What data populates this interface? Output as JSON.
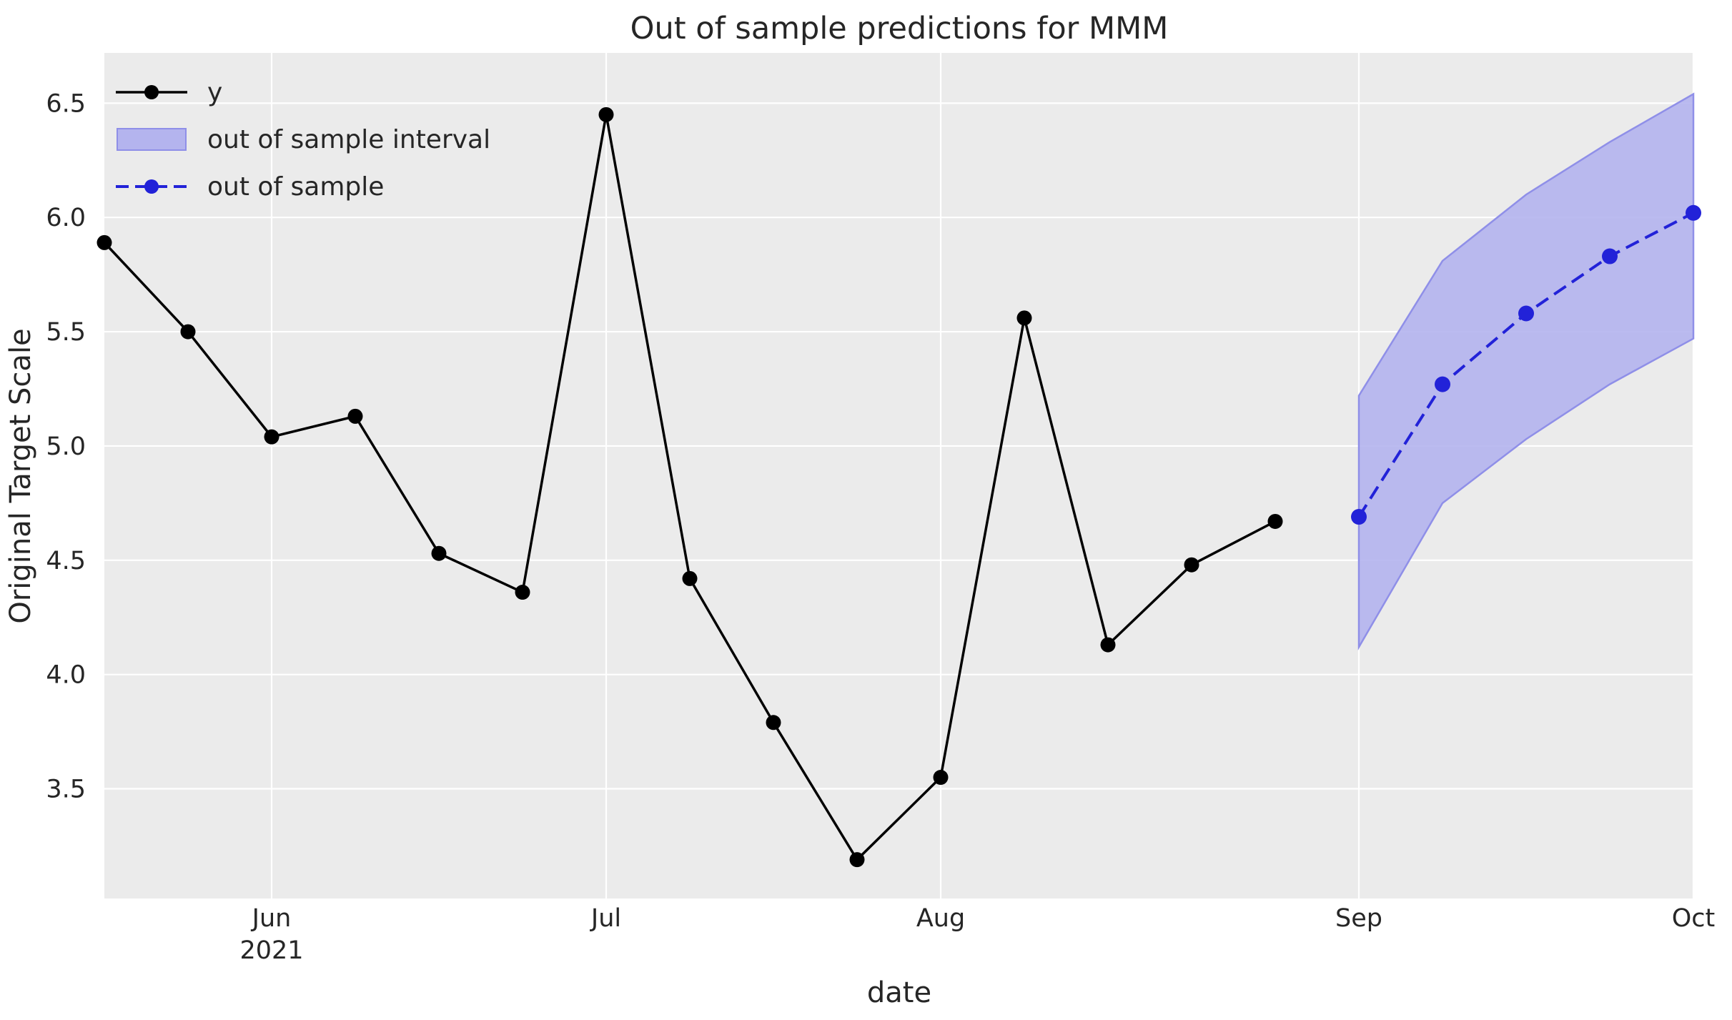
{
  "figure": {
    "title": "Out of sample predictions for MMM",
    "xlabel": "date",
    "ylabel": "Original Target Scale"
  },
  "legend": {
    "position": "upper left",
    "entries": [
      {
        "label": "y",
        "kind": "solid-line-with-marker"
      },
      {
        "label": "out of sample interval",
        "kind": "filled-patch"
      },
      {
        "label": "out of sample",
        "kind": "dashed-line-with-marker"
      }
    ]
  },
  "colors": {
    "figure_background": "#ffffff",
    "plot_background": "#ebebeb",
    "gridline": "#ffffff",
    "observed_series": "#000000",
    "forecast_series": "#2222d8",
    "interval_fill": "#b4b4ee",
    "interval_edge": "#8f8fe8",
    "text": "#262626"
  },
  "chart_data": {
    "type": "line",
    "title": "Out of sample predictions for MMM",
    "xlabel": "date",
    "ylabel": "Original Target Scale",
    "grid": true,
    "legend_position": "upper left",
    "xlim": [
      0,
      19
    ],
    "ylim": [
      3.02,
      6.72
    ],
    "x_ticks": [
      {
        "pos": 2,
        "label": "Jun",
        "sublabel": "2021"
      },
      {
        "pos": 6,
        "label": "Jul",
        "sublabel": ""
      },
      {
        "pos": 10,
        "label": "Aug",
        "sublabel": ""
      },
      {
        "pos": 15,
        "label": "Sep",
        "sublabel": ""
      },
      {
        "pos": 19,
        "label": "Oct",
        "sublabel": ""
      }
    ],
    "y_ticks": [
      {
        "v": 3.5,
        "label": "3.5"
      },
      {
        "v": 4.0,
        "label": "4.0"
      },
      {
        "v": 4.5,
        "label": "4.5"
      },
      {
        "v": 5.0,
        "label": "5.0"
      },
      {
        "v": 5.5,
        "label": "5.5"
      },
      {
        "v": 6.0,
        "label": "6.0"
      },
      {
        "v": 6.5,
        "label": "6.5"
      }
    ],
    "series": [
      {
        "name": "y",
        "style": "solid",
        "marker": "circle",
        "x": [
          0,
          1,
          2,
          3,
          4,
          5,
          6,
          7,
          8,
          9,
          10,
          11,
          12,
          13,
          14
        ],
        "values": [
          5.89,
          5.5,
          5.04,
          5.13,
          4.53,
          4.36,
          6.45,
          4.42,
          3.79,
          3.19,
          3.55,
          5.56,
          4.13,
          4.48,
          4.67
        ]
      },
      {
        "name": "out of sample",
        "style": "dashed",
        "marker": "circle",
        "x": [
          15,
          16,
          17,
          18,
          19
        ],
        "values": [
          4.69,
          5.27,
          5.58,
          5.83,
          6.02
        ]
      }
    ],
    "band": {
      "name": "out of sample interval",
      "x": [
        15,
        16,
        17,
        18,
        19
      ],
      "upper": [
        5.22,
        5.81,
        6.1,
        6.33,
        6.54
      ],
      "lower": [
        4.12,
        4.75,
        5.03,
        5.27,
        5.47
      ]
    }
  }
}
